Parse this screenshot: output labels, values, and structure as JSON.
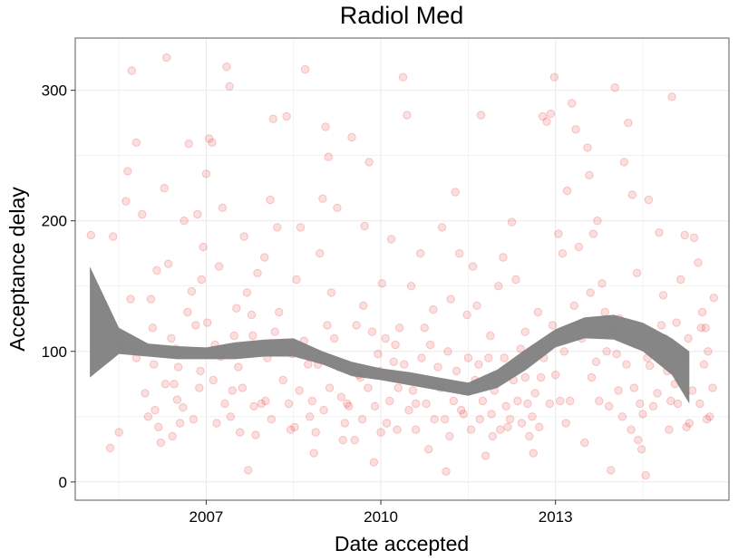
{
  "chart_data": {
    "type": "scatter",
    "title": "Radiol Med",
    "xlabel": "Date accepted",
    "ylabel": "Acceptance delay",
    "x_ticks": [
      2007,
      2010,
      2013
    ],
    "y_ticks": [
      0,
      100,
      200,
      300
    ],
    "xlim": [
      2004.75,
      2015.98
    ],
    "ylim": [
      -14,
      340
    ],
    "grid": true,
    "colors": {
      "points": "#e41a1c",
      "band": "#7f7f7f",
      "grid": "#ebebeb",
      "frame": "#7f7f7f"
    },
    "smooth_band": {
      "x": [
        2005.0,
        2005.5,
        2006.0,
        2006.5,
        2007.0,
        2007.5,
        2008.0,
        2008.5,
        2009.0,
        2009.5,
        2010.0,
        2010.5,
        2011.0,
        2011.5,
        2012.0,
        2012.5,
        2013.0,
        2013.5,
        2014.0,
        2014.5,
        2015.0,
        2015.3
      ],
      "upper": [
        165,
        118,
        106,
        104,
        103,
        107,
        109,
        110,
        100,
        92,
        87,
        84,
        80,
        76,
        86,
        102,
        117,
        126,
        128,
        122,
        110,
        100
      ],
      "lower": [
        80,
        98,
        96,
        94,
        94,
        94,
        96,
        96,
        90,
        81,
        78,
        74,
        70,
        66,
        72,
        86,
        103,
        110,
        109,
        100,
        82,
        60
      ]
    },
    "points": [
      [
        2005.02,
        189
      ],
      [
        2005.35,
        26
      ],
      [
        2005.4,
        188
      ],
      [
        2005.55,
        105
      ],
      [
        2005.62,
        215
      ],
      [
        2005.65,
        238
      ],
      [
        2005.72,
        315
      ],
      [
        2005.8,
        260
      ],
      [
        2005.9,
        205
      ],
      [
        2006.0,
        50
      ],
      [
        2006.05,
        140
      ],
      [
        2006.1,
        90
      ],
      [
        2006.15,
        162
      ],
      [
        2006.22,
        30
      ],
      [
        2006.28,
        225
      ],
      [
        2006.32,
        325
      ],
      [
        2006.4,
        110
      ],
      [
        2006.45,
        75
      ],
      [
        2006.5,
        63
      ],
      [
        2006.55,
        45
      ],
      [
        2006.62,
        200
      ],
      [
        2006.7,
        259
      ],
      [
        2006.75,
        146
      ],
      [
        2006.82,
        120
      ],
      [
        2006.9,
        85
      ],
      [
        2006.95,
        180
      ],
      [
        2007.0,
        236
      ],
      [
        2007.05,
        263
      ],
      [
        2007.1,
        260
      ],
      [
        2007.15,
        105
      ],
      [
        2007.22,
        165
      ],
      [
        2007.28,
        210
      ],
      [
        2007.35,
        318
      ],
      [
        2007.4,
        303
      ],
      [
        2007.45,
        70
      ],
      [
        2007.52,
        133
      ],
      [
        2007.58,
        38
      ],
      [
        2007.65,
        188
      ],
      [
        2007.72,
        9
      ],
      [
        2007.8,
        112
      ],
      [
        2007.88,
        160
      ],
      [
        2007.95,
        60
      ],
      [
        2008.02,
        62
      ],
      [
        2008.1,
        216
      ],
      [
        2008.15,
        278
      ],
      [
        2008.22,
        195
      ],
      [
        2008.3,
        100
      ],
      [
        2008.38,
        280
      ],
      [
        2008.45,
        40
      ],
      [
        2008.55,
        155
      ],
      [
        2008.62,
        195
      ],
      [
        2008.7,
        316
      ],
      [
        2008.78,
        50
      ],
      [
        2008.85,
        22
      ],
      [
        2008.92,
        90
      ],
      [
        2009.0,
        217
      ],
      [
        2009.05,
        272
      ],
      [
        2009.1,
        249
      ],
      [
        2009.15,
        145
      ],
      [
        2009.25,
        210
      ],
      [
        2009.35,
        32
      ],
      [
        2009.42,
        60
      ],
      [
        2009.5,
        264
      ],
      [
        2009.58,
        120
      ],
      [
        2009.65,
        80
      ],
      [
        2009.72,
        196
      ],
      [
        2009.8,
        245
      ],
      [
        2009.88,
        15
      ],
      [
        2009.95,
        98
      ],
      [
        2010.02,
        152
      ],
      [
        2010.1,
        45
      ],
      [
        2010.18,
        186
      ],
      [
        2010.25,
        105
      ],
      [
        2010.3,
        72
      ],
      [
        2010.38,
        310
      ],
      [
        2010.45,
        281
      ],
      [
        2010.52,
        150
      ],
      [
        2010.6,
        60
      ],
      [
        2010.68,
        175
      ],
      [
        2010.75,
        118
      ],
      [
        2010.82,
        25
      ],
      [
        2010.9,
        132
      ],
      [
        2010.98,
        88
      ],
      [
        2011.05,
        195
      ],
      [
        2011.12,
        8
      ],
      [
        2011.2,
        140
      ],
      [
        2011.28,
        222
      ],
      [
        2011.35,
        175
      ],
      [
        2011.42,
        52
      ],
      [
        2011.5,
        95
      ],
      [
        2011.58,
        165
      ],
      [
        2011.65,
        135
      ],
      [
        2011.72,
        281
      ],
      [
        2011.8,
        20
      ],
      [
        2011.88,
        112
      ],
      [
        2011.95,
        70
      ],
      [
        2012.02,
        150
      ],
      [
        2012.1,
        172
      ],
      [
        2012.18,
        42
      ],
      [
        2012.25,
        199
      ],
      [
        2012.32,
        155
      ],
      [
        2012.4,
        102
      ],
      [
        2012.48,
        80
      ],
      [
        2012.55,
        35
      ],
      [
        2012.62,
        22
      ],
      [
        2012.7,
        130
      ],
      [
        2012.78,
        280
      ],
      [
        2012.85,
        276
      ],
      [
        2012.92,
        282
      ],
      [
        2012.98,
        310
      ],
      [
        2013.05,
        190
      ],
      [
        2013.12,
        175
      ],
      [
        2013.2,
        223
      ],
      [
        2013.28,
        290
      ],
      [
        2013.35,
        270
      ],
      [
        2013.42,
        120
      ],
      [
        2013.5,
        30
      ],
      [
        2013.58,
        235
      ],
      [
        2013.65,
        190
      ],
      [
        2013.72,
        200
      ],
      [
        2013.8,
        152
      ],
      [
        2013.88,
        100
      ],
      [
        2013.95,
        9
      ],
      [
        2014.02,
        302
      ],
      [
        2014.1,
        125
      ],
      [
        2014.18,
        245
      ],
      [
        2014.25,
        275
      ],
      [
        2014.32,
        220
      ],
      [
        2014.4,
        160
      ],
      [
        2014.48,
        25
      ],
      [
        2014.55,
        5
      ],
      [
        2014.62,
        89
      ],
      [
        2014.7,
        110
      ],
      [
        2014.78,
        191
      ],
      [
        2014.85,
        143
      ],
      [
        2014.92,
        85
      ],
      [
        2015.0,
        295
      ],
      [
        2015.08,
        122
      ],
      [
        2015.15,
        155
      ],
      [
        2015.22,
        189
      ],
      [
        2015.3,
        45
      ],
      [
        2015.38,
        187
      ],
      [
        2015.45,
        168
      ],
      [
        2015.52,
        130
      ],
      [
        2015.58,
        118
      ],
      [
        2015.65,
        50
      ],
      [
        2015.7,
        72
      ],
      [
        2015.72,
        141
      ],
      [
        2014.6,
        216
      ],
      [
        2013.55,
        256
      ],
      [
        2006.35,
        167
      ],
      [
        2006.6,
        57
      ],
      [
        2006.85,
        205
      ],
      [
        2007.25,
        96
      ],
      [
        2007.7,
        145
      ],
      [
        2008.05,
        95
      ],
      [
        2008.25,
        130
      ],
      [
        2008.6,
        70
      ],
      [
        2008.95,
        175
      ],
      [
        2009.2,
        110
      ],
      [
        2009.45,
        58
      ],
      [
        2009.7,
        135
      ],
      [
        2009.9,
        58
      ],
      [
        2010.15,
        62
      ],
      [
        2010.4,
        90
      ],
      [
        2010.6,
        40
      ],
      [
        2010.85,
        105
      ],
      [
        2011.1,
        48
      ],
      [
        2011.3,
        85
      ],
      [
        2011.55,
        40
      ],
      [
        2011.75,
        62
      ],
      [
        2011.92,
        35
      ],
      [
        2012.15,
        58
      ],
      [
        2012.35,
        62
      ],
      [
        2012.6,
        50
      ],
      [
        2012.8,
        95
      ],
      [
        2013.0,
        82
      ],
      [
        2013.25,
        62
      ],
      [
        2013.6,
        145
      ],
      [
        2013.85,
        130
      ],
      [
        2014.08,
        70
      ],
      [
        2014.3,
        40
      ],
      [
        2014.5,
        52
      ],
      [
        2014.75,
        68
      ],
      [
        2014.95,
        40
      ],
      [
        2015.2,
        95
      ],
      [
        2015.48,
        60
      ],
      [
        2015.62,
        100
      ],
      [
        2005.8,
        95
      ],
      [
        2005.95,
        68
      ],
      [
        2006.18,
        42
      ],
      [
        2006.42,
        35
      ],
      [
        2006.68,
        130
      ],
      [
        2006.92,
        155
      ],
      [
        2007.12,
        78
      ],
      [
        2007.42,
        50
      ],
      [
        2007.62,
        72
      ],
      [
        2007.85,
        36
      ],
      [
        2008.12,
        48
      ],
      [
        2008.42,
        60
      ],
      [
        2008.68,
        108
      ],
      [
        2008.88,
        38
      ],
      [
        2009.12,
        72
      ],
      [
        2009.38,
        45
      ],
      [
        2009.62,
        82
      ],
      [
        2009.85,
        115
      ],
      [
        2010.08,
        110
      ],
      [
        2010.32,
        118
      ],
      [
        2010.58,
        78
      ],
      [
        2010.78,
        60
      ],
      [
        2011.02,
        72
      ],
      [
        2011.25,
        62
      ],
      [
        2011.48,
        128
      ],
      [
        2011.68,
        90
      ],
      [
        2011.9,
        52
      ],
      [
        2012.12,
        95
      ],
      [
        2012.42,
        45
      ],
      [
        2012.65,
        68
      ],
      [
        2012.9,
        60
      ],
      [
        2013.15,
        100
      ],
      [
        2013.4,
        180
      ],
      [
        2013.7,
        92
      ],
      [
        2013.92,
        58
      ],
      [
        2014.15,
        50
      ],
      [
        2014.42,
        32
      ],
      [
        2014.68,
        58
      ],
      [
        2014.88,
        110
      ],
      [
        2015.1,
        60
      ],
      [
        2015.35,
        70
      ],
      [
        2015.55,
        90
      ],
      [
        2005.5,
        38
      ],
      [
        2005.7,
        140
      ],
      [
        2006.08,
        118
      ],
      [
        2006.3,
        75
      ],
      [
        2006.52,
        88
      ],
      [
        2006.78,
        48
      ],
      [
        2007.02,
        122
      ],
      [
        2007.32,
        60
      ],
      [
        2007.55,
        88
      ],
      [
        2007.78,
        128
      ],
      [
        2008.0,
        172
      ],
      [
        2008.32,
        78
      ],
      [
        2008.52,
        42
      ],
      [
        2008.75,
        90
      ],
      [
        2009.02,
        55
      ],
      [
        2009.28,
        88
      ],
      [
        2009.55,
        32
      ],
      [
        2009.78,
        72
      ],
      [
        2010.0,
        38
      ],
      [
        2010.22,
        92
      ],
      [
        2010.48,
        55
      ],
      [
        2010.7,
        95
      ],
      [
        2010.92,
        48
      ],
      [
        2011.15,
        100
      ],
      [
        2011.38,
        55
      ],
      [
        2011.62,
        78
      ],
      [
        2011.85,
        95
      ],
      [
        2012.05,
        40
      ],
      [
        2012.28,
        78
      ],
      [
        2012.52,
        60
      ],
      [
        2012.72,
        42
      ],
      [
        2012.95,
        120
      ],
      [
        2013.18,
        45
      ],
      [
        2013.45,
        110
      ],
      [
        2013.75,
        62
      ],
      [
        2014.05,
        98
      ],
      [
        2014.35,
        72
      ],
      [
        2014.58,
        95
      ],
      [
        2014.82,
        120
      ],
      [
        2015.05,
        75
      ],
      [
        2015.28,
        110
      ],
      [
        2015.6,
        48
      ],
      [
        2006.12,
        55
      ],
      [
        2006.48,
        102
      ],
      [
        2006.88,
        72
      ],
      [
        2007.18,
        45
      ],
      [
        2007.48,
        112
      ],
      [
        2007.82,
        58
      ],
      [
        2008.18,
        115
      ],
      [
        2008.48,
        98
      ],
      [
        2008.82,
        62
      ],
      [
        2009.08,
        120
      ],
      [
        2009.32,
        65
      ],
      [
        2009.68,
        48
      ],
      [
        2009.98,
        85
      ],
      [
        2010.28,
        40
      ],
      [
        2010.55,
        70
      ],
      [
        2010.88,
        75
      ],
      [
        2011.18,
        35
      ],
      [
        2011.45,
        70
      ],
      [
        2011.7,
        48
      ],
      [
        2011.98,
        80
      ],
      [
        2012.22,
        48
      ],
      [
        2012.48,
        115
      ],
      [
        2012.75,
        80
      ],
      [
        2013.08,
        62
      ],
      [
        2013.32,
        135
      ],
      [
        2013.62,
        80
      ],
      [
        2013.98,
        115
      ],
      [
        2014.22,
        90
      ],
      [
        2014.45,
        60
      ],
      [
        2014.72,
        102
      ],
      [
        2014.98,
        62
      ],
      [
        2015.25,
        42
      ],
      [
        2015.5,
        118
      ]
    ]
  }
}
